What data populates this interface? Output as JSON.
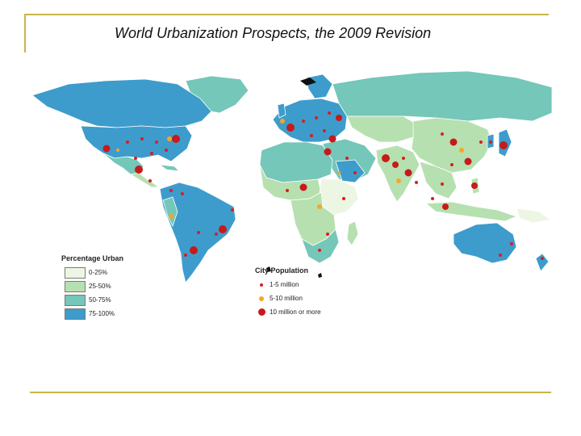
{
  "title": "World Urbanization Prospects, the 2009 Revision",
  "colors": {
    "ocean": "#ffffff",
    "rule": "#c9b44a",
    "urban_0_25": "#edf5e3",
    "urban_25_50": "#b6e0b0",
    "urban_50_75": "#74c7b9",
    "urban_75_100": "#3d9ccc",
    "city_small": "#d81e1e",
    "city_medium": "#f5a623",
    "city_large": "#c71a1a"
  },
  "legend_percentage": {
    "title": "Percentage Urban",
    "items": [
      {
        "label": "0-25%",
        "color": "#edf5e3"
      },
      {
        "label": "25-50%",
        "color": "#b6e0b0"
      },
      {
        "label": "50-75%",
        "color": "#74c7b9"
      },
      {
        "label": "75-100%",
        "color": "#3d9ccc"
      }
    ]
  },
  "legend_city": {
    "title": "City Population",
    "items": [
      {
        "label": "1-5 million",
        "color": "#d81e1e",
        "size": 4
      },
      {
        "label": "5-10 million",
        "color": "#f5a623",
        "size": 6
      },
      {
        "label": "10 million or more",
        "color": "#c71a1a",
        "size": 9
      }
    ]
  }
}
